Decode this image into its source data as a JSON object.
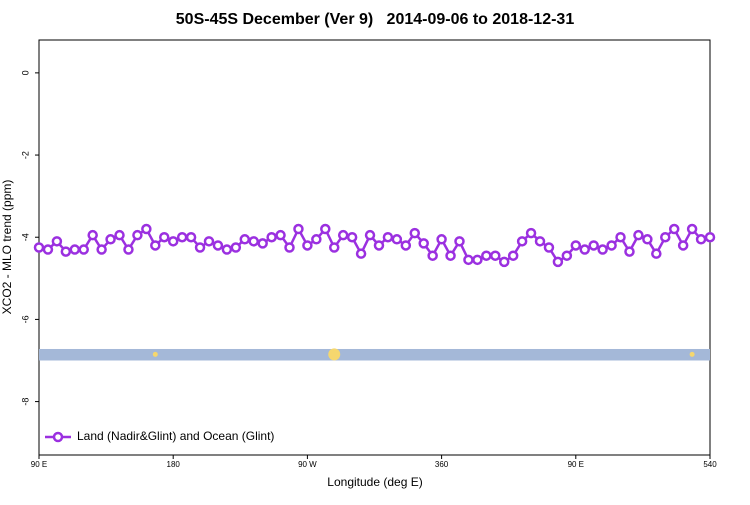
{
  "chart_data": {
    "type": "line",
    "title": "50S-45S December (Ver 9)   2014-09-06 to 2018-12-31",
    "x_label": "Longitude (deg E)",
    "y_label": "XCO2 - MLO trend (ppm)",
    "x": [
      90,
      96,
      102,
      108,
      114,
      120,
      126,
      132,
      138,
      144,
      150,
      156,
      162,
      168,
      174,
      180,
      186,
      192,
      198,
      204,
      210,
      216,
      222,
      228,
      234,
      240,
      246,
      252,
      258,
      264,
      270,
      276,
      282,
      288,
      294,
      300,
      306,
      312,
      318,
      324,
      330,
      336,
      342,
      348,
      354,
      360,
      366,
      372,
      378,
      384,
      390,
      396,
      402,
      408,
      414,
      420,
      426,
      432,
      438,
      444,
      450,
      456,
      462,
      468,
      474,
      480,
      486,
      492,
      498,
      504,
      510,
      516,
      522,
      528,
      534,
      540
    ],
    "series": [
      {
        "name": "Land (Nadir&Glint) and Ocean (Glint)",
        "color": "#9b30e0",
        "values": [
          -4.25,
          -4.3,
          -4.1,
          -4.35,
          -4.3,
          -4.3,
          -3.95,
          -4.3,
          -4.05,
          -3.95,
          -4.3,
          -3.95,
          -3.8,
          -4.2,
          -4.0,
          -4.1,
          -4.0,
          -4.0,
          -4.25,
          -4.1,
          -4.2,
          -4.3,
          -4.25,
          -4.05,
          -4.1,
          -4.15,
          -4.0,
          -3.95,
          -4.25,
          -3.8,
          -4.2,
          -4.05,
          -3.8,
          -4.25,
          -3.95,
          -4.0,
          -4.4,
          -3.95,
          -4.2,
          -4.0,
          -4.05,
          -4.2,
          -3.9,
          -4.15,
          -4.45,
          -4.05,
          -4.45,
          -4.1,
          -4.55,
          -4.55,
          -4.45,
          -4.45,
          -4.6,
          -4.45,
          -4.1,
          -3.9,
          -4.1,
          -4.25,
          -4.6,
          -4.45,
          -4.2,
          -4.3,
          -4.2,
          -4.3,
          -4.2,
          -4.0,
          -4.35,
          -3.95,
          -4.05,
          -4.4,
          -4.0,
          -3.8,
          -4.2,
          -3.8,
          -4.05,
          -4.0
        ]
      }
    ],
    "ocean_band": {
      "color": "#a4b8d8",
      "range": [
        -6.72,
        -7.0
      ]
    },
    "highlights": {
      "color": "#f5d76e",
      "x": [
        168,
        288,
        528
      ],
      "values": [
        -6.85,
        -6.85,
        -6.85
      ]
    },
    "xlim": [
      90,
      540
    ],
    "ylim": [
      -9.3,
      0.8
    ],
    "xticks": [
      {
        "value": 90,
        "label": "90 E"
      },
      180,
      {
        "value": 270,
        "label": "90 W"
      },
      360,
      {
        "value": 450,
        "label": "90 E"
      },
      540
    ],
    "yticks": [
      0,
      -2,
      -4,
      -6,
      -8
    ],
    "legend": "bottom-left"
  }
}
